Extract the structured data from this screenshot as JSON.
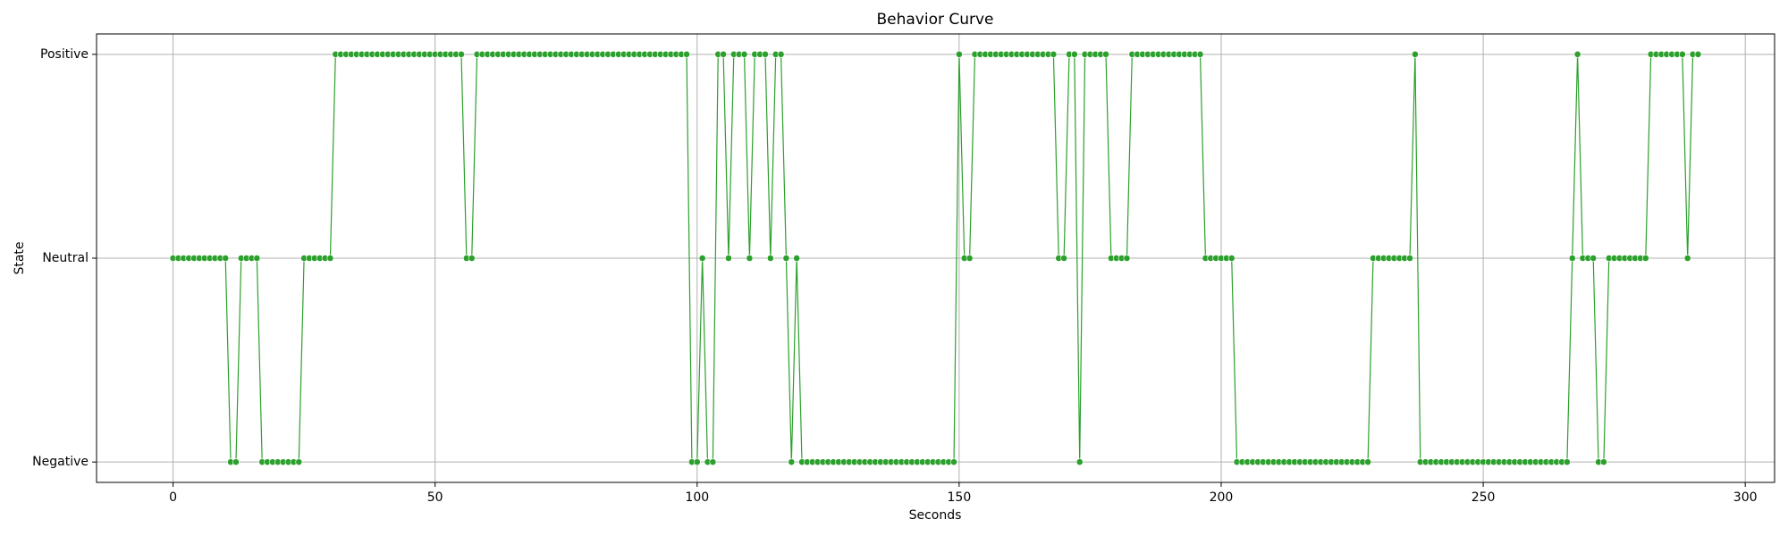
{
  "chart_data": {
    "type": "line",
    "title": "Behavior Curve",
    "x_label": "Seconds",
    "y_label": "State",
    "color": "#2ca02c",
    "grid": true,
    "marker": "circle",
    "xlim": [
      -14.6,
      305.6
    ],
    "xticks": [
      0,
      50,
      100,
      150,
      200,
      250,
      300
    ],
    "ylim": [
      -0.1,
      2.1
    ],
    "yticks": [
      {
        "value": 0,
        "label": "Negative"
      },
      {
        "value": 1,
        "label": "Neutral"
      },
      {
        "value": 2,
        "label": "Positive"
      }
    ],
    "x": [
      0,
      1,
      2,
      3,
      4,
      5,
      6,
      7,
      8,
      9,
      10,
      11,
      12,
      13,
      14,
      15,
      16,
      17,
      18,
      19,
      20,
      21,
      22,
      23,
      24,
      25,
      26,
      27,
      28,
      29,
      30,
      31,
      32,
      33,
      34,
      35,
      36,
      37,
      38,
      39,
      40,
      41,
      42,
      43,
      44,
      45,
      46,
      47,
      48,
      49,
      50,
      51,
      52,
      53,
      54,
      55,
      56,
      57,
      58,
      59,
      60,
      61,
      62,
      63,
      64,
      65,
      66,
      67,
      68,
      69,
      70,
      71,
      72,
      73,
      74,
      75,
      76,
      77,
      78,
      79,
      80,
      81,
      82,
      83,
      84,
      85,
      86,
      87,
      88,
      89,
      90,
      91,
      92,
      93,
      94,
      95,
      96,
      97,
      98,
      99,
      100,
      101,
      102,
      103,
      104,
      105,
      106,
      107,
      108,
      109,
      110,
      111,
      112,
      113,
      114,
      115,
      116,
      117,
      118,
      119,
      120,
      121,
      122,
      123,
      124,
      125,
      126,
      127,
      128,
      129,
      130,
      131,
      132,
      133,
      134,
      135,
      136,
      137,
      138,
      139,
      140,
      141,
      142,
      143,
      144,
      145,
      146,
      147,
      148,
      149,
      150,
      151,
      152,
      153,
      154,
      155,
      156,
      157,
      158,
      159,
      160,
      161,
      162,
      163,
      164,
      165,
      166,
      167,
      168,
      169,
      170,
      171,
      172,
      173,
      174,
      175,
      176,
      177,
      178,
      179,
      180,
      181,
      182,
      183,
      184,
      185,
      186,
      187,
      188,
      189,
      190,
      191,
      192,
      193,
      194,
      195,
      196,
      197,
      198,
      199,
      200,
      201,
      202,
      203,
      204,
      205,
      206,
      207,
      208,
      209,
      210,
      211,
      212,
      213,
      214,
      215,
      216,
      217,
      218,
      219,
      220,
      221,
      222,
      223,
      224,
      225,
      226,
      227,
      228,
      229,
      230,
      231,
      232,
      233,
      234,
      235,
      236,
      237,
      238,
      239,
      240,
      241,
      242,
      243,
      244,
      245,
      246,
      247,
      248,
      249,
      250,
      251,
      252,
      253,
      254,
      255,
      256,
      257,
      258,
      259,
      260,
      261,
      262,
      263,
      264,
      265,
      266,
      267,
      268,
      269,
      270,
      271,
      272,
      273,
      274,
      275,
      276,
      277,
      278,
      279,
      280,
      281,
      282,
      283,
      284,
      285,
      286,
      287,
      288,
      289,
      290,
      291
    ],
    "values": [
      1,
      1,
      1,
      1,
      1,
      1,
      1,
      1,
      1,
      1,
      1,
      0,
      0,
      1,
      1,
      1,
      1,
      0,
      0,
      0,
      0,
      0,
      0,
      0,
      0,
      1,
      1,
      1,
      1,
      1,
      1,
      2,
      2,
      2,
      2,
      2,
      2,
      2,
      2,
      2,
      2,
      2,
      2,
      2,
      2,
      2,
      2,
      2,
      2,
      2,
      2,
      2,
      2,
      2,
      2,
      2,
      1,
      1,
      2,
      2,
      2,
      2,
      2,
      2,
      2,
      2,
      2,
      2,
      2,
      2,
      2,
      2,
      2,
      2,
      2,
      2,
      2,
      2,
      2,
      2,
      2,
      2,
      2,
      2,
      2,
      2,
      2,
      2,
      2,
      2,
      2,
      2,
      2,
      2,
      2,
      2,
      2,
      2,
      2,
      0,
      0,
      1,
      0,
      0,
      2,
      2,
      1,
      2,
      2,
      2,
      1,
      2,
      2,
      2,
      1,
      2,
      2,
      1,
      0,
      1,
      0,
      0,
      0,
      0,
      0,
      0,
      0,
      0,
      0,
      0,
      0,
      0,
      0,
      0,
      0,
      0,
      0,
      0,
      0,
      0,
      0,
      0,
      0,
      0,
      0,
      0,
      0,
      0,
      0,
      0,
      2,
      1,
      1,
      2,
      2,
      2,
      2,
      2,
      2,
      2,
      2,
      2,
      2,
      2,
      2,
      2,
      2,
      2,
      2,
      1,
      1,
      2,
      2,
      0,
      2,
      2,
      2,
      2,
      2,
      1,
      1,
      1,
      1,
      2,
      2,
      2,
      2,
      2,
      2,
      2,
      2,
      2,
      2,
      2,
      2,
      2,
      2,
      1,
      1,
      1,
      1,
      1,
      1,
      0,
      0,
      0,
      0,
      0,
      0,
      0,
      0,
      0,
      0,
      0,
      0,
      0,
      0,
      0,
      0,
      0,
      0,
      0,
      0,
      0,
      0,
      0,
      0,
      0,
      0,
      1,
      1,
      1,
      1,
      1,
      1,
      1,
      1,
      2,
      0,
      0,
      0,
      0,
      0,
      0,
      0,
      0,
      0,
      0,
      0,
      0,
      0,
      0,
      0,
      0,
      0,
      0,
      0,
      0,
      0,
      0,
      0,
      0,
      0,
      0,
      0,
      0,
      0,
      1,
      2,
      1,
      1,
      1,
      0,
      0,
      1,
      1,
      1,
      1,
      1,
      1,
      1,
      1,
      2,
      2,
      2,
      2,
      2,
      2,
      2,
      1,
      2,
      2
    ]
  }
}
